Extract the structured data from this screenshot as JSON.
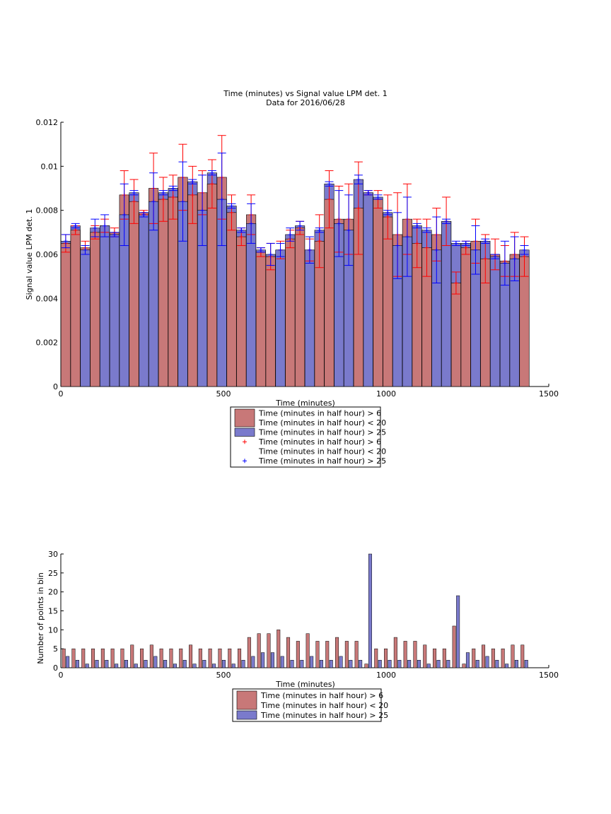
{
  "chart_data": [
    {
      "type": "bar",
      "title": "Time (minutes) vs Signal value LPM det. 1",
      "subtitle": "Data for 2016/06/28",
      "xlabel": "Time (minutes)",
      "ylabel": "Signal value LPM det. 1",
      "xlim": [
        0,
        1500
      ],
      "ylim": [
        0,
        0.012
      ],
      "xticks": [
        "0",
        "500",
        "1000",
        "1500"
      ],
      "yticks": [
        "0",
        "0.002",
        "0.004",
        "0.006",
        "0.008",
        "0.01",
        "0.012"
      ],
      "colors": {
        "red_bar": "#c87878",
        "blue_bar": "#7a7acc",
        "red_marker": "#ff0000",
        "blue_marker": "#0000ff"
      },
      "legend": {
        "placement": "below",
        "entries": [
          {
            "label": "Time (minutes in half hour) > 6",
            "kind": "bar",
            "color": "#c87878"
          },
          {
            "label": "Time (minutes in half hour) < 20",
            "kind": "none"
          },
          {
            "label": "Time (minutes in half hour) > 25",
            "kind": "bar",
            "color": "#7a7acc"
          },
          {
            "label": "Time (minutes in half hour) > 6",
            "kind": "marker",
            "color": "#ff0000"
          },
          {
            "label": "Time (minutes in half hour) < 20",
            "kind": "none"
          },
          {
            "label": "Time (minutes in half hour) > 25",
            "kind": "marker",
            "color": "#0000ff"
          }
        ]
      },
      "x": [
        15,
        45,
        75,
        105,
        135,
        165,
        195,
        225,
        255,
        285,
        315,
        345,
        375,
        405,
        435,
        465,
        495,
        525,
        555,
        585,
        615,
        645,
        675,
        705,
        735,
        765,
        795,
        825,
        855,
        885,
        915,
        945,
        975,
        1005,
        1035,
        1065,
        1095,
        1125,
        1155,
        1185,
        1215,
        1245,
        1275,
        1305,
        1335,
        1365,
        1395,
        1425
      ],
      "series": [
        {
          "name": "Time (minutes in half hour) > 6",
          "values": [
            0.0065,
            0.0071,
            0.0063,
            0.007,
            0.0073,
            0.007,
            0.0087,
            0.0084,
            0.0079,
            0.009,
            0.0085,
            0.0086,
            0.0095,
            0.0087,
            0.0088,
            0.0092,
            0.0095,
            0.0079,
            0.0068,
            0.0078,
            0.0061,
            0.0059,
            0.0062,
            0.0067,
            0.0072,
            0.0062,
            0.0066,
            0.0085,
            0.0076,
            0.0076,
            0.0081,
            0.0088,
            0.0085,
            0.0077,
            0.0069,
            0.0076,
            0.0065,
            0.0063,
            0.0069,
            0.0075,
            0.0047,
            0.0063,
            0.0066,
            0.0058,
            0.006,
            0.0057,
            0.006,
            0.0059
          ],
          "errors": [
            0.0004,
            0.0002,
            0.0003,
            0.0003,
            0.0003,
            0.0002,
            0.0011,
            0.001,
            0.0001,
            0.0016,
            0.001,
            0.001,
            0.0015,
            0.0013,
            0.001,
            0.0011,
            0.0019,
            0.0008,
            0.0004,
            0.0009,
            0.0002,
            0.0006,
            0.0004,
            0.0004,
            0.0003,
            0.0005,
            0.0012,
            0.0013,
            0.0015,
            0.0016,
            0.0021,
            0.0001,
            0.0004,
            0.001,
            0.0019,
            0.0016,
            0.0011,
            0.0013,
            0.0012,
            0.0011,
            0.0005,
            0.0003,
            0.001,
            0.0011,
            0.0007,
            0.0007,
            0.001,
            0.0009
          ]
        },
        {
          "name": "Time (minutes in half hour) > 25",
          "values": [
            0.0066,
            0.0073,
            0.0062,
            0.0072,
            0.0073,
            0.0069,
            0.0078,
            0.0088,
            0.0078,
            0.0084,
            0.0088,
            0.009,
            0.0084,
            0.0093,
            0.008,
            0.0097,
            0.0085,
            0.0082,
            0.0071,
            0.0074,
            0.0062,
            0.006,
            0.0062,
            0.0069,
            0.0073,
            0.0062,
            0.0071,
            0.0092,
            0.0074,
            0.0071,
            0.0094,
            0.0088,
            0.0086,
            0.0079,
            0.0064,
            0.0068,
            0.0073,
            0.0071,
            0.0062,
            0.0075,
            0.0065,
            0.0065,
            0.0062,
            0.0066,
            0.0059,
            0.0056,
            0.0058,
            0.0062
          ],
          "errors": [
            0.0003,
            0.0001,
            0.0002,
            0.0004,
            0.0005,
            0.0001,
            0.0014,
            0.0001,
            0.0001,
            0.0013,
            0.0001,
            0.0001,
            0.0018,
            0.0001,
            0.0016,
            0.0001,
            0.0021,
            0.0001,
            0.0001,
            0.0009,
            0.0001,
            0.0005,
            0.0003,
            0.0003,
            0.0002,
            0.0006,
            0.0001,
            0.0001,
            0.0015,
            0.0016,
            0.0002,
            0.0001,
            0.0001,
            0.0001,
            0.0015,
            0.0018,
            0.0001,
            0.0001,
            0.0015,
            0.0001,
            0.0001,
            0.0001,
            0.0011,
            0.0001,
            0.0001,
            0.001,
            0.001,
            0.0002
          ]
        }
      ]
    },
    {
      "type": "bar",
      "xlabel": "Time (minutes)",
      "ylabel": "Number of points in bin",
      "xlim": [
        0,
        1500
      ],
      "ylim": [
        0,
        30
      ],
      "xticks": [
        "0",
        "500",
        "1000",
        "1500"
      ],
      "yticks": [
        "0",
        "5",
        "10",
        "15",
        "20",
        "25",
        "30"
      ],
      "legend": {
        "placement": "below",
        "entries": [
          {
            "label": "Time (minutes in half hour) > 6",
            "kind": "bar",
            "color": "#c87878"
          },
          {
            "label": "Time (minutes in half hour) < 20",
            "kind": "none"
          },
          {
            "label": "Time (minutes in half hour) > 25",
            "kind": "bar",
            "color": "#7a7acc"
          }
        ]
      },
      "x": [
        15,
        45,
        75,
        105,
        135,
        165,
        195,
        225,
        255,
        285,
        315,
        345,
        375,
        405,
        435,
        465,
        495,
        525,
        555,
        585,
        615,
        645,
        675,
        705,
        735,
        765,
        795,
        825,
        855,
        885,
        915,
        945,
        975,
        1005,
        1035,
        1065,
        1095,
        1125,
        1155,
        1185,
        1215,
        1245,
        1275,
        1305,
        1335,
        1365,
        1395,
        1425
      ],
      "series": [
        {
          "name": "Time (minutes in half hour) > 6",
          "values": [
            5,
            5,
            5,
            5,
            5,
            5,
            5,
            6,
            5,
            6,
            5,
            5,
            5,
            6,
            5,
            5,
            5,
            5,
            5,
            8,
            9,
            9,
            10,
            8,
            7,
            9,
            7,
            7,
            8,
            7,
            7,
            1,
            5,
            5,
            8,
            7,
            7,
            6,
            5,
            5,
            11,
            1,
            5,
            6,
            5,
            5,
            6,
            6
          ]
        },
        {
          "name": "Time (minutes in half hour) > 25",
          "values": [
            3,
            2,
            1,
            2,
            2,
            1,
            2,
            1,
            2,
            3,
            2,
            1,
            2,
            1,
            2,
            1,
            2,
            1,
            2,
            3,
            4,
            4,
            3,
            2,
            2,
            3,
            2,
            2,
            3,
            2,
            2,
            30,
            2,
            2,
            2,
            2,
            2,
            1,
            2,
            2,
            19,
            4,
            2,
            3,
            2,
            1,
            2,
            2
          ]
        }
      ]
    }
  ]
}
